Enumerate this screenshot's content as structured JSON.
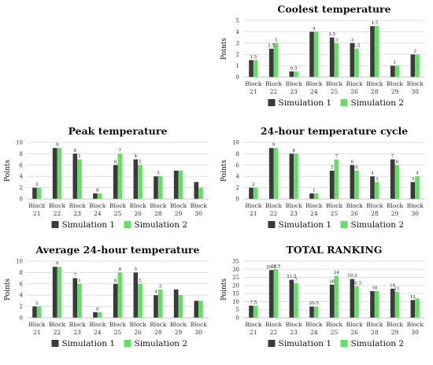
{
  "chart_data": [
    {
      "type": "bar",
      "title": "Coolest temperature",
      "ylabel": "Points",
      "xlabel": "",
      "categories": [
        "Block 21",
        "Block 22",
        "Block 23",
        "Block 24",
        "Block 25",
        "Block 26",
        "Block 28",
        "Block 29",
        "Block 30"
      ],
      "ylim": [
        0,
        5
      ],
      "yticks": [
        0,
        1,
        2,
        3,
        4,
        5
      ],
      "grid": true,
      "legend": "bottom",
      "series": [
        {
          "name": "Simulation 1",
          "color": "#3a3a3a",
          "values": [
            1.5,
            2.5,
            0.5,
            4,
            3.5,
            3,
            4.5,
            1,
            2
          ]
        },
        {
          "name": "Simulation 2",
          "color": "#66dd66",
          "values": [
            1.5,
            3,
            0.5,
            4,
            3,
            2.5,
            4.5,
            1,
            2
          ]
        }
      ],
      "data_labels": [
        "1.5",
        "2.5",
        "3",
        "0.5",
        "4",
        "3.5",
        "3",
        "3",
        "2.5",
        "4.5",
        "1",
        "2"
      ]
    },
    {
      "type": "bar",
      "title": "Peak temperature",
      "ylabel": "Points",
      "xlabel": "",
      "categories": [
        "Block 21",
        "Block 22",
        "Block 23",
        "Block 24",
        "Block 25",
        "Block 26",
        "Block 28",
        "Block 29",
        "Block 30"
      ],
      "ylim": [
        0,
        10
      ],
      "yticks": [
        0,
        2,
        4,
        6,
        8,
        10
      ],
      "grid": true,
      "legend": "bottom",
      "series": [
        {
          "name": "Simulation 1",
          "color": "#3a3a3a",
          "values": [
            2,
            9,
            8,
            1,
            6,
            7,
            4,
            5,
            3
          ]
        },
        {
          "name": "Simulation 2",
          "color": "#66dd66",
          "values": [
            2,
            9,
            7,
            1,
            8,
            6,
            4,
            5,
            2
          ]
        }
      ],
      "data_labels": [
        "2",
        "9",
        "8",
        "1",
        "6",
        "8",
        "7",
        "4",
        "5",
        "3"
      ]
    },
    {
      "type": "bar",
      "title": "24-hour temperature cycle",
      "ylabel": "Points",
      "xlabel": "",
      "categories": [
        "Block 21",
        "Block 22",
        "Block 23",
        "Block 24",
        "Block 25",
        "Block 26",
        "Block 28",
        "Block 29",
        "Block 30"
      ],
      "ylim": [
        0,
        10
      ],
      "yticks": [
        0,
        2,
        4,
        6,
        8,
        10
      ],
      "grid": true,
      "legend": "bottom",
      "series": [
        {
          "name": "Simulation 1",
          "color": "#3a3a3a",
          "values": [
            2,
            9,
            8,
            1,
            5,
            6,
            4,
            7,
            3
          ]
        },
        {
          "name": "Simulation 2",
          "color": "#66dd66",
          "values": [
            2,
            9,
            8,
            1,
            7,
            5,
            3,
            6,
            4
          ]
        }
      ],
      "data_labels": [
        "2",
        "9",
        "8",
        "1",
        "5",
        "7",
        "6",
        "6",
        "4",
        "3",
        "7",
        "6",
        "3",
        "4"
      ]
    },
    {
      "type": "bar",
      "title": "Average 24-hour temperature",
      "ylabel": "Points",
      "xlabel": "",
      "categories": [
        "Block 21",
        "Block 22",
        "Block 23",
        "Block 24",
        "Block 25",
        "Block 26",
        "Block 28",
        "Block 29",
        "Block 30"
      ],
      "ylim": [
        0,
        10
      ],
      "yticks": [
        0,
        2,
        4,
        6,
        8,
        10
      ],
      "grid": true,
      "legend": "bottom",
      "series": [
        {
          "name": "Simulation 1",
          "color": "#3a3a3a",
          "values": [
            2,
            9,
            7,
            1,
            6,
            8,
            4,
            5,
            3
          ]
        },
        {
          "name": "Simulation 2",
          "color": "#66dd66",
          "values": [
            2,
            9,
            6,
            1,
            8,
            6,
            5,
            4,
            3
          ]
        }
      ],
      "data_labels": [
        "2",
        "9",
        "7",
        "1",
        "6",
        "8",
        "8",
        "5",
        "5",
        "4",
        "3"
      ]
    },
    {
      "type": "bar",
      "title": "TOTAL RANKING",
      "ylabel": "Points",
      "xlabel": "",
      "categories": [
        "Block 21",
        "Block 22",
        "Block 23",
        "Block 24",
        "Block 25",
        "Block 26",
        "Block 28",
        "Block 29",
        "Block 30"
      ],
      "ylim": [
        0,
        35
      ],
      "yticks": [
        0,
        5,
        10,
        15,
        20,
        25,
        30,
        35
      ],
      "grid": true,
      "legend": "bottom",
      "series": [
        {
          "name": "Simulation 1",
          "color": "#3a3a3a",
          "values": [
            7.5,
            29.5,
            23.5,
            7,
            20.5,
            24,
            16.5,
            18,
            11
          ]
        },
        {
          "name": "Simulation 2",
          "color": "#66dd66",
          "values": [
            7.5,
            30,
            21.5,
            7,
            26,
            19.5,
            16.5,
            16,
            12
          ]
        }
      ],
      "data_labels": [
        "7.5",
        "29.5",
        "23.5",
        "21.5",
        "7",
        "20.5",
        "26",
        "24",
        "19.5",
        "16.5",
        "18",
        "16",
        "11",
        "12"
      ]
    }
  ]
}
